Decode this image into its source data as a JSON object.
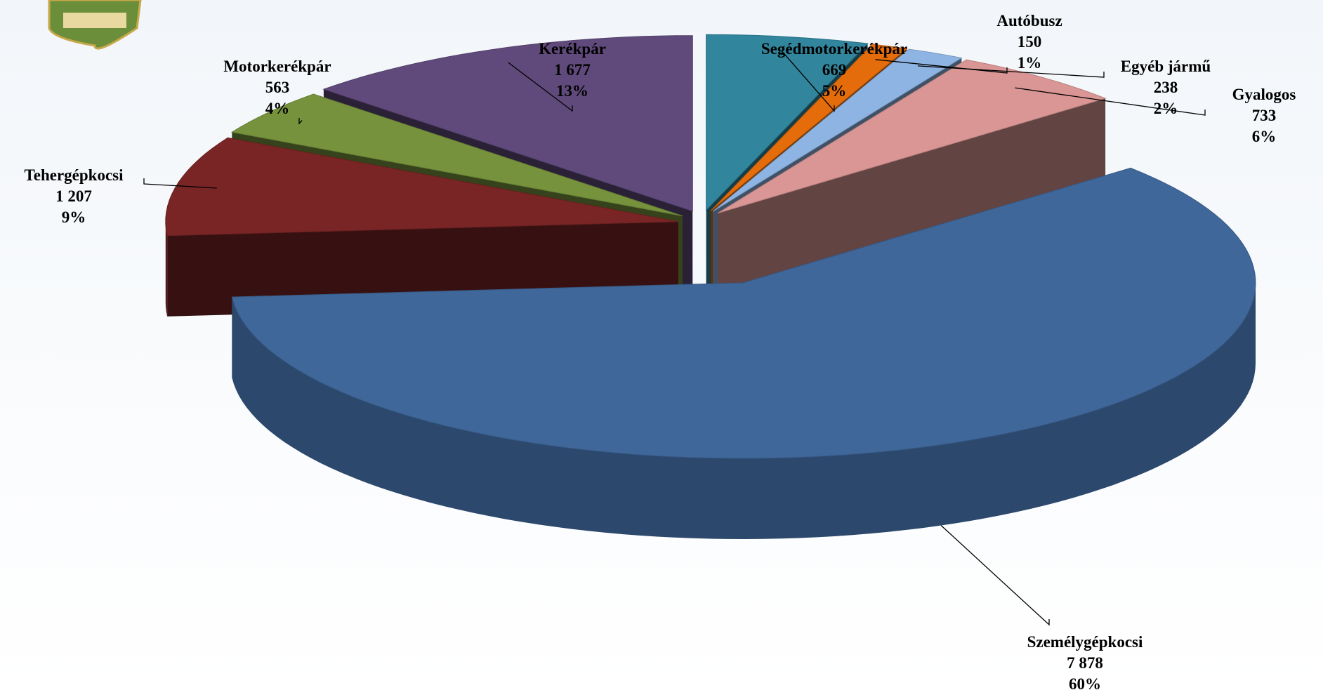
{
  "chart_data": {
    "type": "pie3d",
    "categories": [
      "Segédmotorkerékpár",
      "Autóbusz",
      "Egyéb jármű",
      "Gyalogos",
      "Személygépkocsi",
      "Tehergépkocsi",
      "Motorkerékpár",
      "Kerékpár"
    ],
    "values": [
      669,
      150,
      238,
      733,
      7878,
      1207,
      563,
      1677
    ],
    "value_labels": [
      "669",
      "150",
      "238",
      "733",
      "7 878",
      "1 207",
      "563",
      "1 677"
    ],
    "percents": [
      5,
      1,
      2,
      6,
      60,
      9,
      4,
      13
    ],
    "percent_labels": [
      "5%",
      "1%",
      "2%",
      "6%",
      "60%",
      "9%",
      "4%",
      "13%"
    ],
    "colors": [
      "#31859c",
      "#e46c0a",
      "#8eb4e3",
      "#d99694",
      "#3f679a",
      "#7a2525",
      "#76923c",
      "#604a7b"
    ]
  }
}
